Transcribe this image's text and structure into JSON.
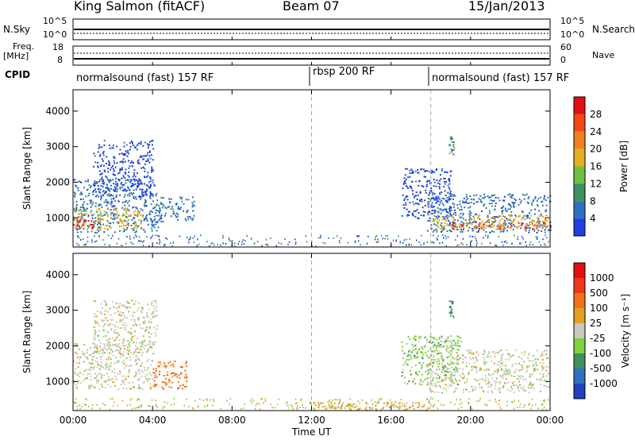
{
  "header": {
    "title": "King Salmon (fitACF)",
    "beam": "Beam 07",
    "date": "15/Jan/2013"
  },
  "small_panels": {
    "nsky_label": "N.Sky",
    "nsky_ticks": [
      "10^5",
      "10^0"
    ],
    "nsearch_label": "N.Search",
    "nsearch_ticks": [
      "10^5",
      "10^0"
    ],
    "freq_label_top": "Freq.",
    "freq_label_unit": "[MHz]",
    "freq_ticks": [
      "18",
      "8"
    ],
    "nave_label": "Nave",
    "nave_ticks": [
      "60",
      "0"
    ],
    "cpid_label": "CPID"
  },
  "cpid_segments": [
    {
      "label": "normalsound (fast) 157 RF",
      "start_hour": 0
    },
    {
      "label": "rbsp 200 RF",
      "start_hour": 12
    },
    {
      "label": "normalsound (fast) 157 RF",
      "start_hour": 18
    }
  ],
  "colors": {
    "power_scale": [
      "#1f3fe0",
      "#2f6fc0",
      "#3f8f5f",
      "#6fc040",
      "#e0b020",
      "#f08020",
      "#f04818",
      "#e01010"
    ],
    "velocity_scale": [
      "#2040c0",
      "#3070c0",
      "#3f8f5f",
      "#80d040",
      "#c8c8c0",
      "#e0a020",
      "#f07018",
      "#f03818",
      "#e01010"
    ],
    "guide_line": "#aaaaaa"
  },
  "chart_data": [
    {
      "type": "heatmap",
      "name": "power",
      "ylabel": "Slant Range [km]",
      "xlabel": "Time UT",
      "x_ticks": [
        "00:00",
        "04:00",
        "08:00",
        "12:00",
        "16:00",
        "20:00",
        "00:00"
      ],
      "y_ticks": [
        "1000",
        "2000",
        "3000",
        "4000"
      ],
      "xlim_hours": [
        0,
        24
      ],
      "ylim_km": [
        180,
        4600
      ],
      "colorbar_label": "Power [dB]",
      "colorbar_ticks": [
        "4",
        "8",
        "12",
        "16",
        "20",
        "24",
        "28"
      ],
      "colorbar_range": [
        0,
        32
      ],
      "regions": [
        {
          "t0": 0.0,
          "t1": 4.3,
          "r0": 600,
          "r1": 2100,
          "level": 1
        },
        {
          "t0": 0.0,
          "t1": 3.5,
          "r0": 700,
          "r1": 1300,
          "level": 4
        },
        {
          "t0": 0.0,
          "t1": 1.0,
          "r0": 700,
          "r1": 1000,
          "level": 7
        },
        {
          "t0": 1.0,
          "t1": 4.0,
          "r0": 1600,
          "r1": 3200,
          "level": 0
        },
        {
          "t0": 4.3,
          "t1": 6.1,
          "r0": 900,
          "r1": 1600,
          "level": 1
        },
        {
          "t0": 17.8,
          "t1": 24.0,
          "r0": 600,
          "r1": 1700,
          "level": 1
        },
        {
          "t0": 18.0,
          "t1": 24.0,
          "r0": 700,
          "r1": 1100,
          "level": 4
        },
        {
          "t0": 19.0,
          "t1": 24.0,
          "r0": 700,
          "r1": 900,
          "level": 6
        },
        {
          "t0": 16.5,
          "t1": 19.0,
          "r0": 1000,
          "r1": 2400,
          "level": 0
        },
        {
          "t0": 18.9,
          "t1": 19.15,
          "r0": 2800,
          "r1": 3300,
          "level": 2
        }
      ]
    },
    {
      "type": "heatmap",
      "name": "velocity",
      "ylabel": "Slant Range [km]",
      "xlabel": "Time UT",
      "x_ticks": [
        "00:00",
        "04:00",
        "08:00",
        "12:00",
        "16:00",
        "20:00",
        "00:00"
      ],
      "y_ticks": [
        "1000",
        "2000",
        "3000",
        "4000"
      ],
      "xlim_hours": [
        0,
        24
      ],
      "ylim_km": [
        180,
        4600
      ],
      "colorbar_label": "Velocity [m s⁻¹]",
      "colorbar_ticks": [
        "1000",
        "500",
        "100",
        "25",
        "-25",
        "-100",
        "-500",
        "-1000"
      ],
      "regions": [
        {
          "t0": 0.0,
          "t1": 4.0,
          "r0": 800,
          "r1": 2100,
          "level": 4
        },
        {
          "t0": 4.0,
          "t1": 5.7,
          "r0": 800,
          "r1": 1600,
          "level": 6
        },
        {
          "t0": 1.0,
          "t1": 4.2,
          "r0": 1800,
          "r1": 3300,
          "level": 4
        },
        {
          "t0": 17.8,
          "t1": 24.0,
          "r0": 700,
          "r1": 1900,
          "level": 4
        },
        {
          "t0": 16.5,
          "t1": 19.5,
          "r0": 900,
          "r1": 2300,
          "level": 3
        },
        {
          "t0": 18.9,
          "t1": 19.15,
          "r0": 2800,
          "r1": 3300,
          "level": 2
        },
        {
          "t0": 12.0,
          "t1": 18.0,
          "r0": 200,
          "r1": 450,
          "level": 5
        }
      ]
    }
  ]
}
